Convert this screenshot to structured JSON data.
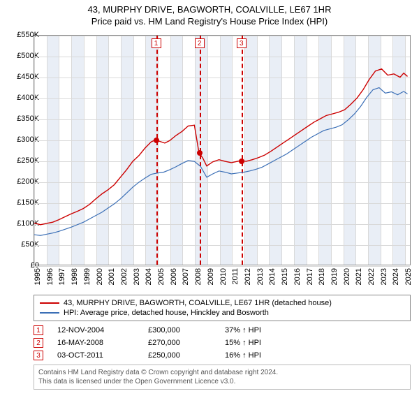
{
  "title": {
    "line1": "43, MURPHY DRIVE, BAGWORTH, COALVILLE, LE67 1HR",
    "line2": "Price paid vs. HM Land Registry's House Price Index (HPI)"
  },
  "chart": {
    "type": "line",
    "background_color": "#ffffff",
    "grid_color": "#d9d9d9",
    "shade_color": "#e9eef6",
    "border_color": "#888888",
    "x": {
      "min": 1995,
      "max": 2025.5,
      "ticks_every": 1
    },
    "y": {
      "min": 0,
      "max": 550000,
      "tick_step": 50000,
      "prefix": "£",
      "suffix": "K",
      "divide": 1000
    },
    "markers": {
      "line_color": "#cc0000",
      "box_border": "#cc0000",
      "box_text": "#cc0000",
      "point_color": "#cc0000",
      "point_radius": 4
    },
    "series": [
      {
        "id": "address",
        "label": "43, MURPHY DRIVE, BAGWORTH, COALVILLE, LE67 1HR (detached house)",
        "color": "#cc0000",
        "width": 1.4,
        "data": [
          [
            1995.0,
            100000
          ],
          [
            1995.5,
            96000
          ],
          [
            1996.0,
            99000
          ],
          [
            1996.5,
            102000
          ],
          [
            1997.0,
            108000
          ],
          [
            1997.5,
            115000
          ],
          [
            1998.0,
            122000
          ],
          [
            1998.5,
            128000
          ],
          [
            1999.0,
            135000
          ],
          [
            1999.5,
            145000
          ],
          [
            2000.0,
            158000
          ],
          [
            2000.5,
            170000
          ],
          [
            2001.0,
            180000
          ],
          [
            2001.5,
            192000
          ],
          [
            2002.0,
            210000
          ],
          [
            2002.5,
            228000
          ],
          [
            2003.0,
            248000
          ],
          [
            2003.5,
            262000
          ],
          [
            2004.0,
            280000
          ],
          [
            2004.5,
            295000
          ],
          [
            2004.86,
            300000
          ],
          [
            2005.2,
            296000
          ],
          [
            2005.6,
            292000
          ],
          [
            2006.0,
            298000
          ],
          [
            2006.5,
            310000
          ],
          [
            2007.0,
            320000
          ],
          [
            2007.5,
            333000
          ],
          [
            2008.0,
            335000
          ],
          [
            2008.37,
            270000
          ],
          [
            2008.7,
            255000
          ],
          [
            2009.0,
            237000
          ],
          [
            2009.5,
            247000
          ],
          [
            2010.0,
            252000
          ],
          [
            2010.5,
            248000
          ],
          [
            2011.0,
            245000
          ],
          [
            2011.5,
            248000
          ],
          [
            2011.76,
            250000
          ],
          [
            2012.2,
            248000
          ],
          [
            2012.7,
            252000
          ],
          [
            2013.2,
            257000
          ],
          [
            2013.7,
            263000
          ],
          [
            2014.2,
            272000
          ],
          [
            2014.7,
            282000
          ],
          [
            2015.2,
            292000
          ],
          [
            2015.7,
            302000
          ],
          [
            2016.2,
            312000
          ],
          [
            2016.7,
            322000
          ],
          [
            2017.2,
            332000
          ],
          [
            2017.7,
            342000
          ],
          [
            2018.2,
            350000
          ],
          [
            2018.7,
            358000
          ],
          [
            2019.2,
            362000
          ],
          [
            2019.7,
            366000
          ],
          [
            2020.2,
            372000
          ],
          [
            2020.7,
            385000
          ],
          [
            2021.2,
            400000
          ],
          [
            2021.7,
            420000
          ],
          [
            2022.2,
            445000
          ],
          [
            2022.7,
            465000
          ],
          [
            2023.2,
            470000
          ],
          [
            2023.7,
            455000
          ],
          [
            2024.2,
            458000
          ],
          [
            2024.7,
            450000
          ],
          [
            2025.0,
            460000
          ],
          [
            2025.3,
            452000
          ]
        ]
      },
      {
        "id": "hpi",
        "label": "HPI: Average price, detached house, Hinckley and Bosworth",
        "color": "#3b6fb6",
        "width": 1.2,
        "data": [
          [
            1995.0,
            72000
          ],
          [
            1995.5,
            70000
          ],
          [
            1996.0,
            73000
          ],
          [
            1996.5,
            76000
          ],
          [
            1997.0,
            80000
          ],
          [
            1997.5,
            85000
          ],
          [
            1998.0,
            90000
          ],
          [
            1998.5,
            96000
          ],
          [
            1999.0,
            102000
          ],
          [
            1999.5,
            110000
          ],
          [
            2000.0,
            118000
          ],
          [
            2000.5,
            126000
          ],
          [
            2001.0,
            136000
          ],
          [
            2001.5,
            146000
          ],
          [
            2002.0,
            158000
          ],
          [
            2002.5,
            172000
          ],
          [
            2003.0,
            186000
          ],
          [
            2003.5,
            198000
          ],
          [
            2004.0,
            208000
          ],
          [
            2004.5,
            217000
          ],
          [
            2005.0,
            220000
          ],
          [
            2005.5,
            222000
          ],
          [
            2006.0,
            228000
          ],
          [
            2006.5,
            235000
          ],
          [
            2007.0,
            243000
          ],
          [
            2007.5,
            250000
          ],
          [
            2008.0,
            248000
          ],
          [
            2008.5,
            236000
          ],
          [
            2009.0,
            210000
          ],
          [
            2009.5,
            218000
          ],
          [
            2010.0,
            225000
          ],
          [
            2010.5,
            222000
          ],
          [
            2011.0,
            218000
          ],
          [
            2011.5,
            220000
          ],
          [
            2012.0,
            222000
          ],
          [
            2012.5,
            225000
          ],
          [
            2013.0,
            229000
          ],
          [
            2013.5,
            234000
          ],
          [
            2014.0,
            242000
          ],
          [
            2014.5,
            250000
          ],
          [
            2015.0,
            258000
          ],
          [
            2015.5,
            266000
          ],
          [
            2016.0,
            276000
          ],
          [
            2016.5,
            286000
          ],
          [
            2017.0,
            296000
          ],
          [
            2017.5,
            306000
          ],
          [
            2018.0,
            314000
          ],
          [
            2018.5,
            322000
          ],
          [
            2019.0,
            326000
          ],
          [
            2019.5,
            330000
          ],
          [
            2020.0,
            336000
          ],
          [
            2020.5,
            348000
          ],
          [
            2021.0,
            362000
          ],
          [
            2021.5,
            380000
          ],
          [
            2022.0,
            402000
          ],
          [
            2022.5,
            420000
          ],
          [
            2023.0,
            425000
          ],
          [
            2023.5,
            412000
          ],
          [
            2024.0,
            415000
          ],
          [
            2024.5,
            408000
          ],
          [
            2025.0,
            416000
          ],
          [
            2025.3,
            410000
          ]
        ]
      }
    ],
    "sales_markers": [
      {
        "idx": "1",
        "x": 2004.86,
        "y": 300000
      },
      {
        "idx": "2",
        "x": 2008.37,
        "y": 270000
      },
      {
        "idx": "3",
        "x": 2011.76,
        "y": 250000
      }
    ]
  },
  "legend": {
    "border_color": "#888888"
  },
  "sales": [
    {
      "idx": "1",
      "date": "12-NOV-2004",
      "price": "£300,000",
      "delta": "37% ↑ HPI"
    },
    {
      "idx": "2",
      "date": "16-MAY-2008",
      "price": "£270,000",
      "delta": "15% ↑ HPI"
    },
    {
      "idx": "3",
      "date": "03-OCT-2011",
      "price": "£250,000",
      "delta": "16% ↑ HPI"
    }
  ],
  "footer": {
    "line1": "Contains HM Land Registry data © Crown copyright and database right 2024.",
    "line2": "This data is licensed under the Open Government Licence v3.0."
  }
}
